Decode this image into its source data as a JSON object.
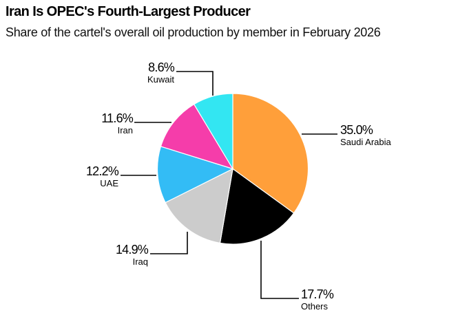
{
  "header": {
    "title": "Iran Is OPEC's Fourth-Largest Producer",
    "subtitle": "Share of the cartel's overall oil production by member in February 2026"
  },
  "chart_data": {
    "type": "pie",
    "title": "Iran Is OPEC's Fourth-Largest Producer",
    "subtitle": "Share of the cartel's overall oil production by member in February 2026",
    "start_angle": "12 o'clock, clockwise",
    "categories": [
      "Saudi Arabia",
      "Others",
      "Iraq",
      "UAE",
      "Iran",
      "Kuwait"
    ],
    "values": [
      35.0,
      17.7,
      14.9,
      12.2,
      11.6,
      8.6
    ],
    "unit": "%",
    "colors": [
      "#FF9F3A",
      "#000000",
      "#CCCCCC",
      "#33BCF5",
      "#F53DAA",
      "#33E6F2"
    ],
    "labels": [
      {
        "name": "Saudi Arabia",
        "pct": "35.0%"
      },
      {
        "name": "Others",
        "pct": "17.7%"
      },
      {
        "name": "Iraq",
        "pct": "14.9%"
      },
      {
        "name": "UAE",
        "pct": "12.2%"
      },
      {
        "name": "Iran",
        "pct": "11.6%"
      },
      {
        "name": "Kuwait",
        "pct": "8.6%"
      }
    ]
  }
}
